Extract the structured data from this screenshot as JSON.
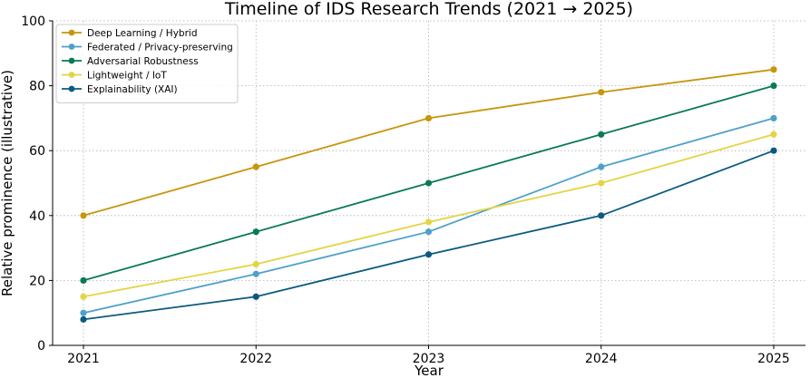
{
  "chart_data": {
    "type": "line",
    "title": "Timeline of IDS Research Trends (2021 → 2025)",
    "xlabel": "Year",
    "ylabel": "Relative prominence (illustrative)",
    "x": [
      "2021",
      "2022",
      "2023",
      "2024",
      "2025"
    ],
    "ylim": [
      0,
      100
    ],
    "yticks": [
      "0",
      "20",
      "40",
      "60",
      "80",
      "100"
    ],
    "grid": true,
    "legend_position": "top-left",
    "series": [
      {
        "name": "Deep Learning / Hybrid",
        "color": "#c8960c",
        "values": [
          40,
          55,
          70,
          78,
          85
        ]
      },
      {
        "name": "Federated / Privacy-preserving",
        "color": "#4ea1c9",
        "values": [
          10,
          22,
          35,
          55,
          70
        ]
      },
      {
        "name": "Adversarial Robustness",
        "color": "#0a7a55",
        "values": [
          20,
          35,
          50,
          65,
          80
        ]
      },
      {
        "name": "Lightweight / IoT",
        "color": "#e3d544",
        "values": [
          15,
          25,
          38,
          50,
          65
        ]
      },
      {
        "name": "Explainability (XAI)",
        "color": "#0a5a80",
        "values": [
          8,
          15,
          28,
          40,
          60
        ]
      }
    ]
  }
}
